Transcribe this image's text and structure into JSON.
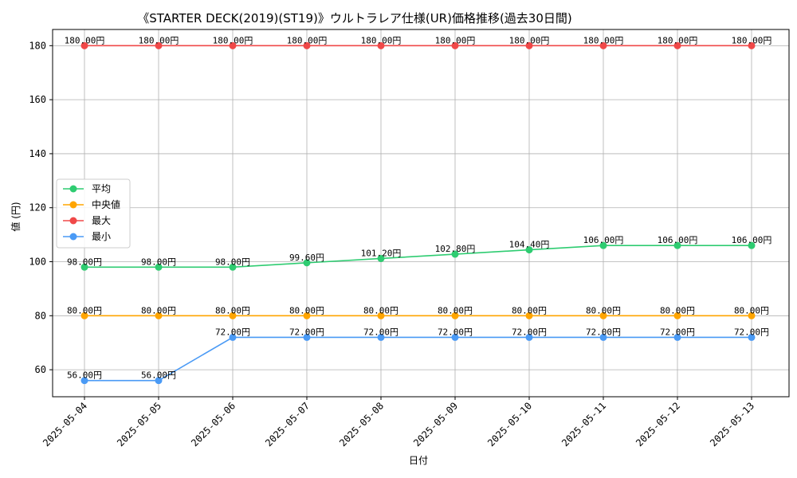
{
  "chart_data": {
    "type": "line",
    "title": "《STARTER DECK(2019)(ST19)》ウルトラレア仕様(UR)価格推移(過去30日間)",
    "xlabel": "日付",
    "ylabel": "値 (円)",
    "ylim": [
      50,
      186
    ],
    "yticks": [
      60,
      80,
      100,
      120,
      140,
      160,
      180
    ],
    "grid": true,
    "legend_position": "center-left",
    "label_suffix": "円",
    "categories": [
      "2025-05-04",
      "2025-05-05",
      "2025-05-06",
      "2025-05-07",
      "2025-05-08",
      "2025-05-09",
      "2025-05-10",
      "2025-05-11",
      "2025-05-12",
      "2025-05-13"
    ],
    "series": [
      {
        "name": "平均",
        "color": "#2ecc71",
        "values": [
          98.0,
          98.0,
          98.0,
          99.6,
          101.2,
          102.8,
          104.4,
          106.0,
          106.0,
          106.0
        ]
      },
      {
        "name": "中央値",
        "color": "#ffa500",
        "values": [
          80.0,
          80.0,
          80.0,
          80.0,
          80.0,
          80.0,
          80.0,
          80.0,
          80.0,
          80.0
        ]
      },
      {
        "name": "最大",
        "color": "#f04848",
        "values": [
          180.0,
          180.0,
          180.0,
          180.0,
          180.0,
          180.0,
          180.0,
          180.0,
          180.0,
          180.0
        ]
      },
      {
        "name": "最小",
        "color": "#4a9af5",
        "values": [
          56.0,
          56.0,
          72.0,
          72.0,
          72.0,
          72.0,
          72.0,
          72.0,
          72.0,
          72.0
        ]
      }
    ]
  }
}
